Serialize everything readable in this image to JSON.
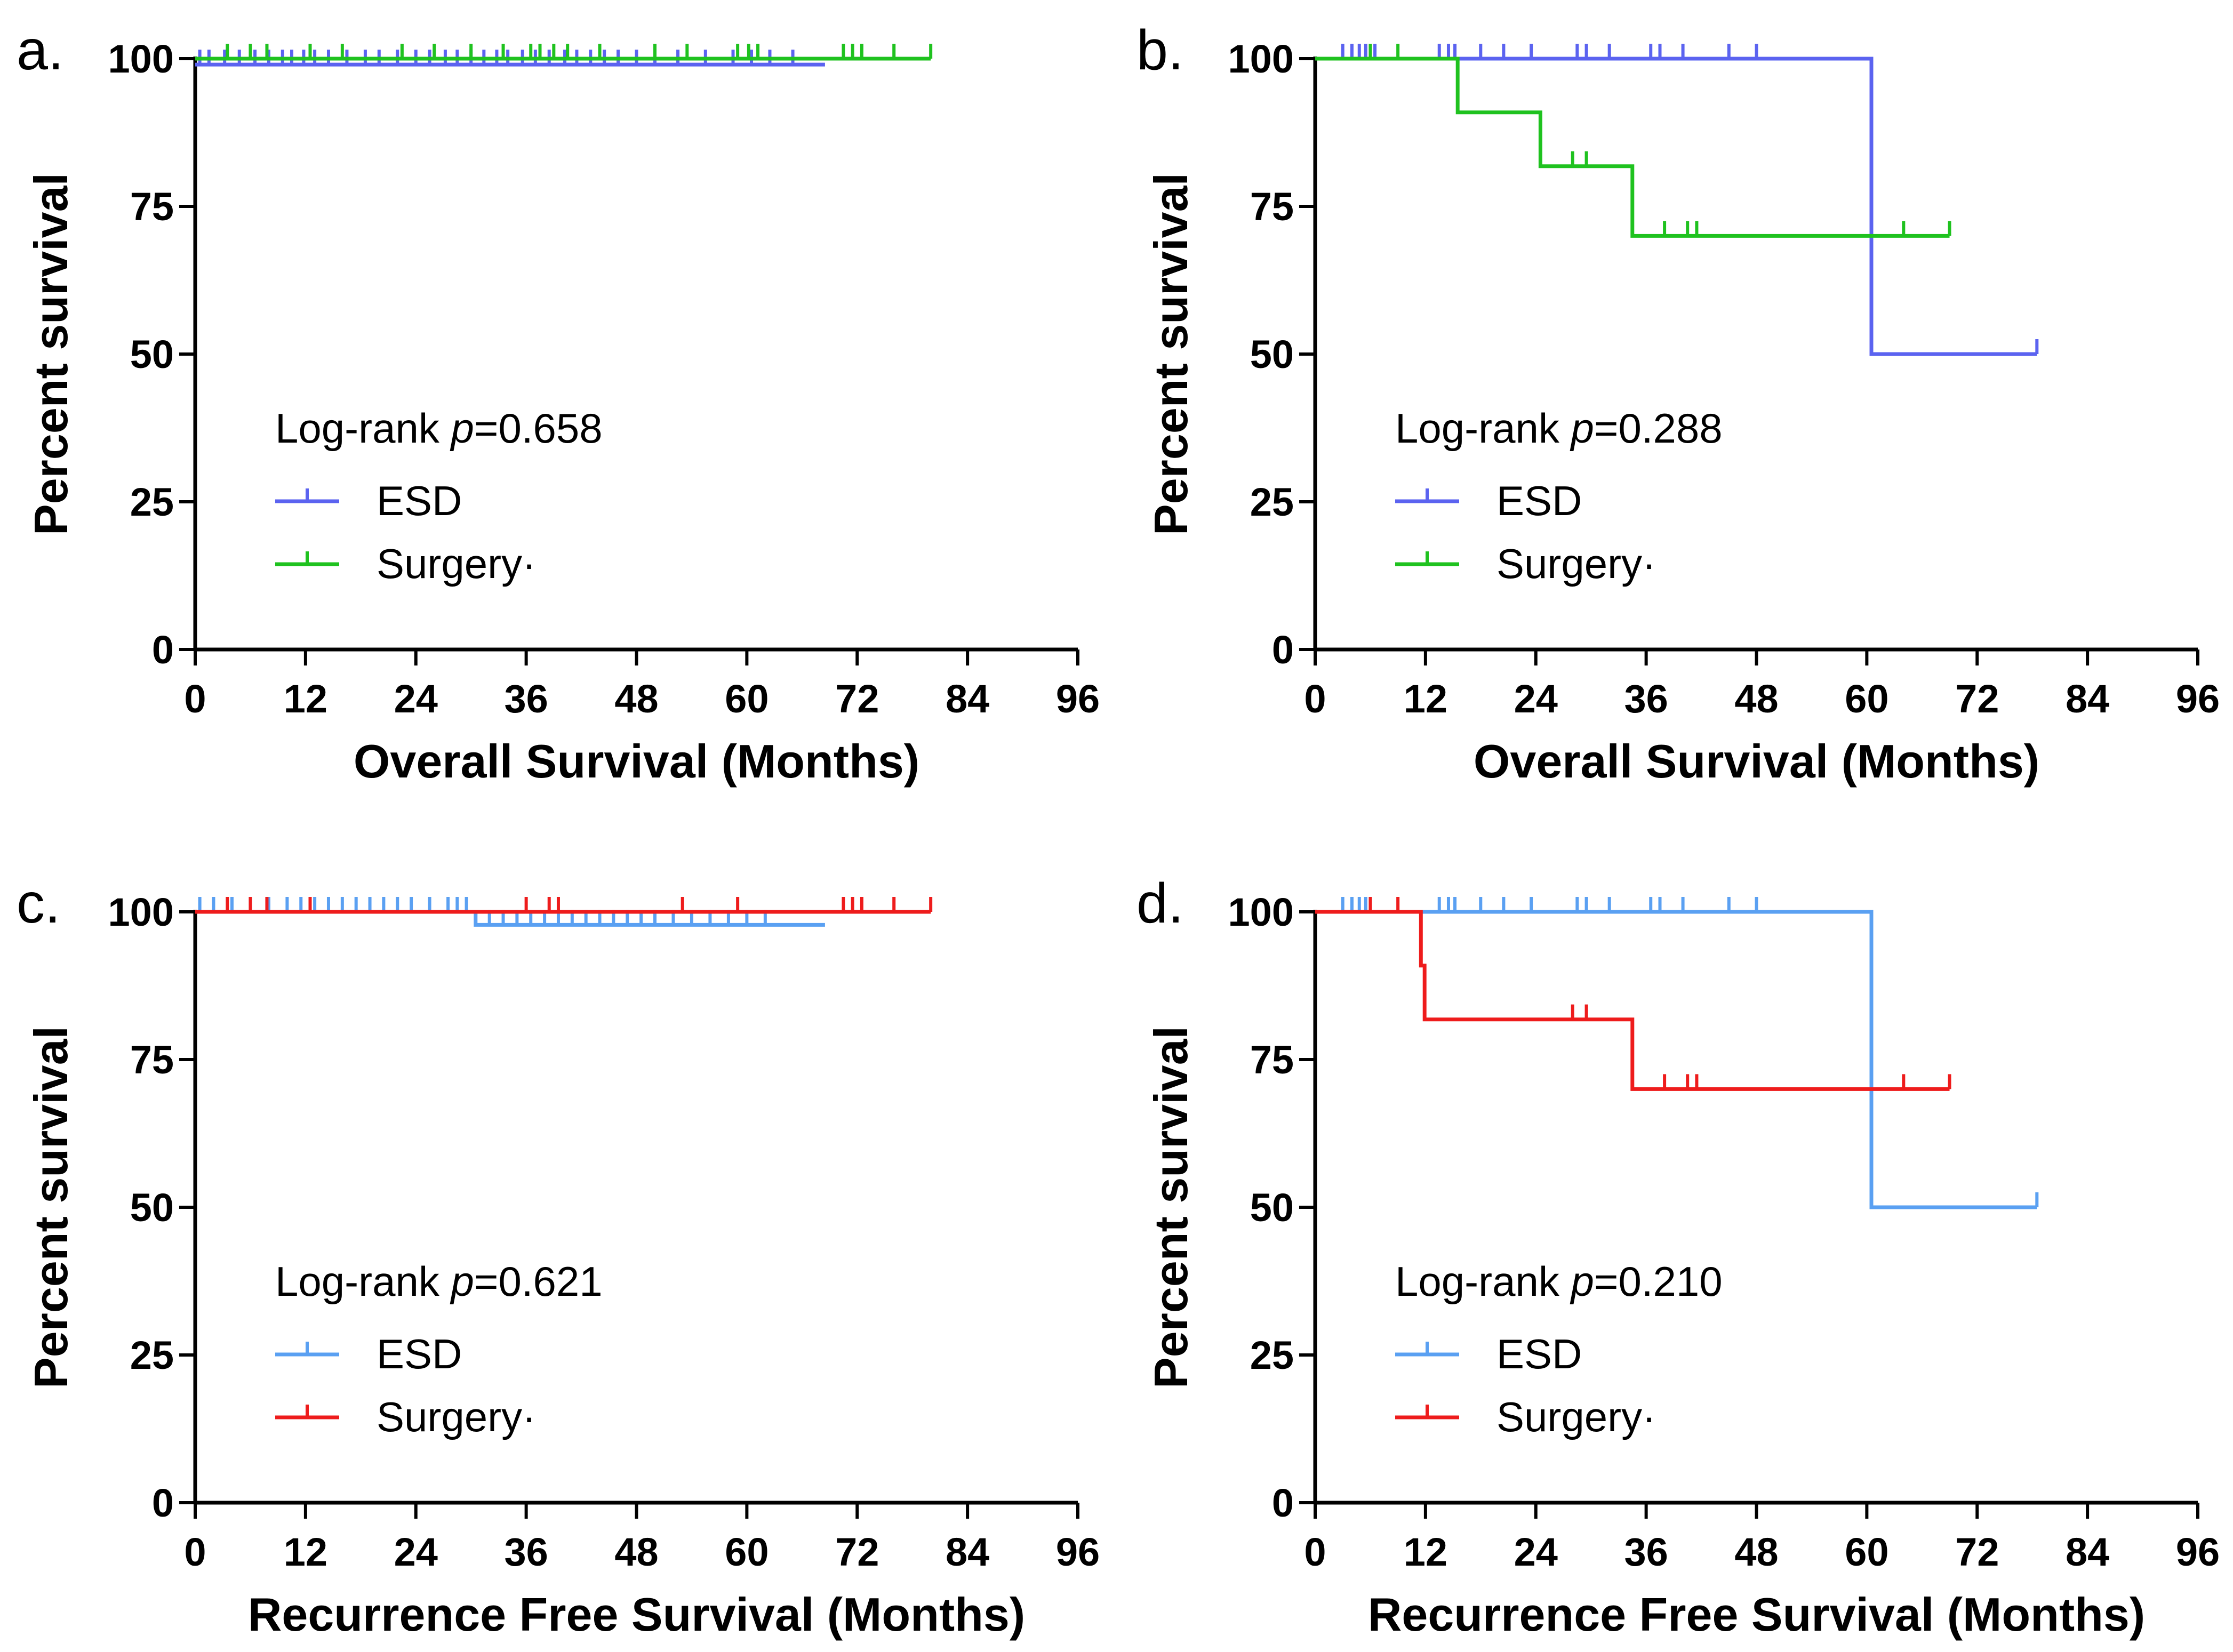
{
  "figure": {
    "description_panels": 4
  },
  "chart_data": [
    {
      "panel": "a.",
      "type": "line",
      "style": "kaplan-meier",
      "xlabel": "Overall Survival (Months)",
      "ylabel": "Percent survival",
      "xlim": [
        0,
        96
      ],
      "ylim": [
        0,
        100
      ],
      "xticks": [
        0,
        12,
        24,
        36,
        48,
        60,
        72,
        84,
        96
      ],
      "yticks": [
        0,
        25,
        50,
        75,
        100
      ],
      "annotation": {
        "prefix": "Log-rank ",
        "italic": "p",
        "suffix": "=0.658"
      },
      "series": [
        {
          "name": "ESD",
          "color": "#5b63f0",
          "steps": [
            [
              0,
              99
            ],
            [
              68.5,
              99
            ]
          ],
          "censor": [
            0.5,
            1.5,
            3.2,
            4.8,
            6.5,
            8,
            9.5,
            10.5,
            11.8,
            13,
            14.5,
            16.5,
            18.5,
            20,
            22,
            24,
            25.5,
            27.2,
            28.5,
            30,
            31.4,
            32.8,
            34,
            35.6,
            37,
            38.5,
            40.2,
            41.5,
            43,
            44.5,
            46,
            48,
            50,
            52.5,
            55.5,
            58.5,
            60.5,
            62.5,
            65
          ]
        },
        {
          "name": "Surgery·",
          "color": "#1fc21f",
          "steps": [
            [
              0,
              100
            ],
            [
              80,
              100
            ]
          ],
          "censor": [
            3.5,
            6,
            7.8,
            12.5,
            16,
            22.5,
            26,
            30,
            33.5,
            36.5,
            37.5,
            39,
            40.5,
            44,
            50,
            53.5,
            59,
            60.2,
            61.2,
            70.5,
            71.5,
            72.5,
            76,
            80
          ]
        }
      ]
    },
    {
      "panel": "b.",
      "type": "line",
      "style": "kaplan-meier",
      "xlabel": "Overall Survival (Months)",
      "ylabel": "Percent survival",
      "xlim": [
        0,
        96
      ],
      "ylim": [
        0,
        100
      ],
      "xticks": [
        0,
        12,
        24,
        36,
        48,
        60,
        72,
        84,
        96
      ],
      "yticks": [
        0,
        25,
        50,
        75,
        100
      ],
      "annotation": {
        "prefix": "Log-rank ",
        "italic": "p",
        "suffix": "=0.288"
      },
      "series": [
        {
          "name": "ESD",
          "color": "#5b63f0",
          "steps": [
            [
              0,
              100
            ],
            [
              60.5,
              100
            ],
            [
              60.5,
              50
            ],
            [
              78.5,
              50
            ]
          ],
          "censor": [
            3,
            4,
            4.8,
            5.5,
            6.5,
            13.5,
            14.5,
            15.2,
            18,
            20.5,
            23.5,
            28.5,
            29.5,
            32,
            36.5,
            37.5,
            40,
            45,
            48,
            78.5
          ]
        },
        {
          "name": "Surgery·",
          "color": "#1fc21f",
          "steps": [
            [
              0,
              100
            ],
            [
              15.5,
              100
            ],
            [
              15.5,
              90.9
            ],
            [
              24.5,
              90.9
            ],
            [
              24.5,
              81.8
            ],
            [
              34.5,
              81.8
            ],
            [
              34.5,
              70
            ],
            [
              69,
              70
            ]
          ],
          "censor": [
            6,
            9,
            28,
            29.5,
            38,
            40.5,
            41.5,
            64,
            69
          ]
        }
      ]
    },
    {
      "panel": "c.",
      "type": "line",
      "style": "kaplan-meier",
      "xlabel": "Recurrence Free Survival (Months)",
      "ylabel": "Percent survival",
      "xlim": [
        0,
        96
      ],
      "ylim": [
        0,
        100
      ],
      "xticks": [
        0,
        12,
        24,
        36,
        48,
        60,
        72,
        84,
        96
      ],
      "yticks": [
        0,
        25,
        50,
        75,
        100
      ],
      "annotation": {
        "prefix": "Log-rank ",
        "italic": "p",
        "suffix": "=0.621"
      },
      "series": [
        {
          "name": "ESD",
          "color": "#5aa0f2",
          "steps": [
            [
              0,
              100
            ],
            [
              30.5,
              100
            ],
            [
              30.5,
              97.8
            ],
            [
              68.5,
              97.8
            ]
          ],
          "censor": [
            0.5,
            2,
            4,
            6,
            8,
            10,
            11.5,
            13,
            14.5,
            16,
            17.5,
            19,
            20.5,
            22,
            23.5,
            25.5,
            27.5,
            28.5,
            29.5,
            32,
            33.5,
            35,
            36.5,
            38,
            39.5,
            41,
            42.5,
            44,
            45.5,
            47,
            48.5,
            50,
            52,
            54,
            56,
            58,
            60,
            62
          ]
        },
        {
          "name": "Surgery·",
          "color": "#ee1c1c",
          "steps": [
            [
              0,
              100
            ],
            [
              80,
              100
            ]
          ],
          "censor": [
            3.5,
            6,
            7.8,
            12.5,
            36,
            38.5,
            39.5,
            53,
            59,
            70.5,
            71.5,
            72.5,
            76,
            80
          ]
        }
      ]
    },
    {
      "panel": "d.",
      "type": "line",
      "style": "kaplan-meier",
      "xlabel": "Recurrence Free Survival (Months)",
      "ylabel": "Percent survival",
      "xlim": [
        0,
        96
      ],
      "ylim": [
        0,
        100
      ],
      "xticks": [
        0,
        12,
        24,
        36,
        48,
        60,
        72,
        84,
        96
      ],
      "yticks": [
        0,
        25,
        50,
        75,
        100
      ],
      "annotation": {
        "prefix": "Log-rank ",
        "italic": "p",
        "suffix": "=0.210"
      },
      "series": [
        {
          "name": "ESD",
          "color": "#5aa0f2",
          "steps": [
            [
              0,
              100
            ],
            [
              60.5,
              100
            ],
            [
              60.5,
              50
            ],
            [
              78.5,
              50
            ]
          ],
          "censor": [
            3,
            4,
            4.8,
            5.5,
            13.5,
            14.5,
            15.2,
            18,
            20.5,
            23.5,
            28.5,
            29.5,
            32,
            36.5,
            37.5,
            40,
            45,
            48,
            78.5
          ]
        },
        {
          "name": "Surgery·",
          "color": "#ee1c1c",
          "steps": [
            [
              0,
              100
            ],
            [
              11.5,
              100
            ],
            [
              11.5,
              90.9
            ],
            [
              11.9,
              90.9
            ],
            [
              11.9,
              81.8
            ],
            [
              34.5,
              81.8
            ],
            [
              34.5,
              70
            ],
            [
              69,
              70
            ]
          ],
          "censor": [
            6,
            9,
            28,
            29.5,
            38,
            40.5,
            41.5,
            64,
            69
          ]
        }
      ]
    }
  ]
}
